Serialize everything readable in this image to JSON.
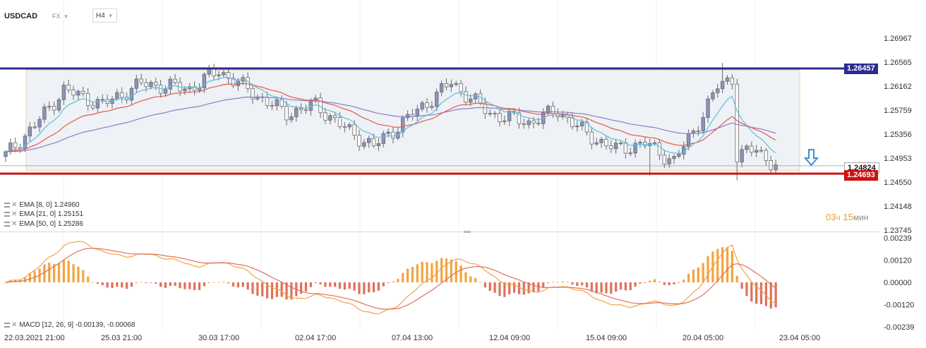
{
  "header": {
    "symbol": "USDCAD",
    "market": "FX",
    "timeframe": "H4"
  },
  "colors": {
    "candle_up": "#8a93bd",
    "candle_down": "#ffffff",
    "candle_border": "#6b6b6b",
    "ema8": "#5bc0de",
    "ema21": "#e05a4e",
    "ema50": "#8a7cc9",
    "resistance": "#2b2b8f",
    "support": "#cc1111",
    "macd_pos": "#f4a340",
    "macd_neg": "#e0705a",
    "macd_line": "#f4a340",
    "signal_line": "#e0705a",
    "box_fill": "#eef1f5",
    "box_border": "#e6d89a",
    "arrow": "#3a8fd6"
  },
  "indicators": [
    {
      "label": "EMA [8, 0]",
      "value": "1.24960"
    },
    {
      "label": "EMA [21, 0]",
      "value": "1.25151"
    },
    {
      "label": "EMA [50, 0]",
      "value": "1.25286"
    }
  ],
  "macd_legend": {
    "label": "MACD [12, 26, 9]",
    "value": "-0.00139, -0.00068"
  },
  "timer": {
    "hours": "03",
    "h_unit": "ч",
    "minutes": "15",
    "m_unit": "мин"
  },
  "level_tags": {
    "resistance": "1.26457",
    "current": "1.24824",
    "support": "1.24693"
  },
  "chart_data": [
    {
      "type": "candlestick",
      "title": "USDCAD H4",
      "ylim": [
        1.23745,
        1.272
      ],
      "y_ticks": [
        "1.26967",
        "1.26565",
        "1.26162",
        "1.25759",
        "1.25356",
        "1.24953",
        "1.24550",
        "1.24148",
        "1.23745"
      ],
      "x_ticks": [
        "22.03.2021  21:00",
        "25.03  21:00",
        "30.03  17:00",
        "02.04  17:00",
        "07.04  13:00",
        "12.04  09:00",
        "15.04  09:00",
        "20.04  05:00",
        "23.04  05:00"
      ],
      "levels": {
        "resistance": 1.26457,
        "support": 1.24693,
        "current": 1.24824
      },
      "ema_last": {
        "ema8": 1.2496,
        "ema21": 1.25151,
        "ema50": 1.25286
      }
    },
    {
      "type": "bar",
      "title": "MACD [12, 26, 9]",
      "ylim": [
        -0.00239,
        0.00239
      ],
      "y_ticks": [
        "0.00239",
        "0.00120",
        "0.00000",
        "-0.00120",
        "-0.00239"
      ],
      "last": {
        "macd": -0.00139,
        "signal": -0.00068
      }
    }
  ]
}
